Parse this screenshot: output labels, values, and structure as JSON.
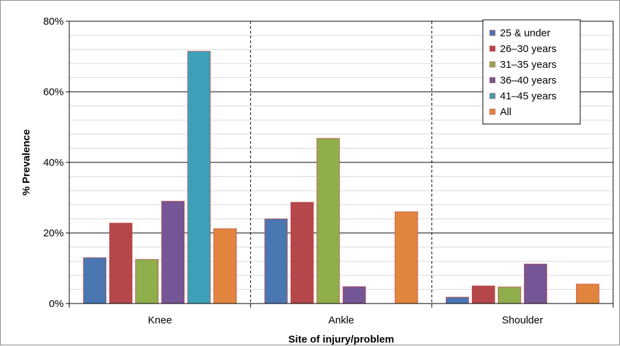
{
  "chart_data": {
    "type": "bar",
    "xlabel": "Site of injury/problem",
    "ylabel": "% Prevalence",
    "ylim": [
      0,
      80
    ],
    "yticks": [
      0,
      20,
      40,
      60,
      80
    ],
    "ytick_labels": [
      "0%",
      "20%",
      "40%",
      "60%",
      "80%"
    ],
    "grid": true,
    "legend_position": "top-right",
    "categories": [
      "Knee",
      "Ankle",
      "Shoulder"
    ],
    "series": [
      {
        "name": "25 & under",
        "color": "#4a76b2",
        "values": [
          13,
          24,
          1.8
        ]
      },
      {
        "name": "26–30 years",
        "color": "#b5474a",
        "values": [
          22.8,
          28.7,
          5
        ]
      },
      {
        "name": "31–35 years",
        "color": "#8fae4c",
        "values": [
          12.5,
          46.8,
          4.7
        ]
      },
      {
        "name": "36–40 years",
        "color": "#745595",
        "values": [
          29,
          4.8,
          11.2
        ]
      },
      {
        "name": "41–45 years",
        "color": "#3e9fb8",
        "values": [
          71.5,
          0,
          0
        ]
      },
      {
        "name": "All",
        "color": "#e1843e",
        "values": [
          21.2,
          26,
          5.5
        ]
      }
    ]
  }
}
